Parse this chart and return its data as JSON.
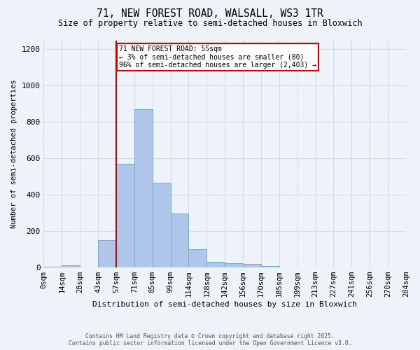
{
  "title_line1": "71, NEW FOREST ROAD, WALSALL, WS3 1TR",
  "title_line2": "Size of property relative to semi-detached houses in Bloxwich",
  "xlabel": "Distribution of semi-detached houses by size in Bloxwich",
  "ylabel": "Number of semi-detached properties",
  "bin_labels": [
    "0sqm",
    "14sqm",
    "28sqm",
    "43sqm",
    "57sqm",
    "71sqm",
    "85sqm",
    "99sqm",
    "114sqm",
    "128sqm",
    "142sqm",
    "156sqm",
    "170sqm",
    "185sqm",
    "199sqm",
    "213sqm",
    "227sqm",
    "241sqm",
    "256sqm",
    "270sqm",
    "284sqm"
  ],
  "bar_heights": [
    3,
    10,
    0,
    150,
    570,
    870,
    465,
    295,
    100,
    30,
    22,
    20,
    8,
    0,
    0,
    0,
    0,
    0,
    0,
    0
  ],
  "bar_color": "#aec6e8",
  "bar_edge_color": "#6baed6",
  "grid_color": "#d0dcea",
  "background_color": "#eef2f9",
  "property_line_x": 4,
  "annotation_title": "71 NEW FOREST ROAD: 55sqm",
  "annotation_line1": "← 3% of semi-detached houses are smaller (80)",
  "annotation_line2": "96% of semi-detached houses are larger (2,403) →",
  "annotation_box_color": "#cc0000",
  "ylim": [
    0,
    1250
  ],
  "yticks": [
    0,
    200,
    400,
    600,
    800,
    1000,
    1200
  ],
  "footer_line1": "Contains HM Land Registry data © Crown copyright and database right 2025.",
  "footer_line2": "Contains public sector information licensed under the Open Government Licence v3.0."
}
